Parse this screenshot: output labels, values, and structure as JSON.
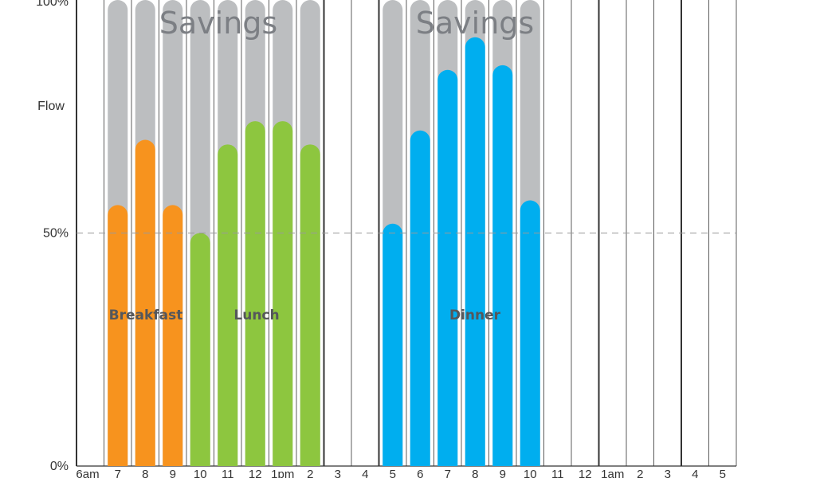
{
  "chart_data": {
    "type": "bar",
    "ylabel": "Flow",
    "ylim": [
      0,
      100
    ],
    "y_ticks": [
      "0%",
      "50%",
      "100%"
    ],
    "reference_line": {
      "value": 50,
      "style": "dashed"
    },
    "categories": [
      "6am",
      "7",
      "8",
      "9",
      "10",
      "11",
      "12",
      "1pm",
      "2",
      "3",
      "4",
      "5",
      "6",
      "7",
      "8",
      "9",
      "10",
      "11",
      "12",
      "1am",
      "2",
      "3",
      "4",
      "5"
    ],
    "full_capacity": [
      null,
      100,
      100,
      100,
      100,
      100,
      100,
      100,
      100,
      null,
      null,
      100,
      100,
      100,
      100,
      100,
      100,
      null,
      null,
      null,
      null,
      null,
      null,
      null
    ],
    "series": [
      {
        "name": "Breakfast",
        "color": "#f7931e",
        "values": [
          null,
          56,
          70,
          56,
          null,
          null,
          null,
          null,
          null,
          null,
          null,
          null,
          null,
          null,
          null,
          null,
          null,
          null,
          null,
          null,
          null,
          null,
          null,
          null
        ]
      },
      {
        "name": "Lunch",
        "color": "#8dc63f",
        "values": [
          null,
          null,
          null,
          null,
          50,
          69,
          74,
          74,
          69,
          null,
          null,
          null,
          null,
          null,
          null,
          null,
          null,
          null,
          null,
          null,
          null,
          null,
          null,
          null
        ]
      },
      {
        "name": "Dinner",
        "color": "#00aeef",
        "values": [
          null,
          null,
          null,
          null,
          null,
          null,
          null,
          null,
          null,
          null,
          null,
          52,
          72,
          85,
          92,
          86,
          57,
          null,
          null,
          null,
          null,
          null,
          null,
          null
        ]
      }
    ],
    "annotations": [
      {
        "text": "Savings",
        "near": "Breakfast and Lunch"
      },
      {
        "text": "Savings",
        "near": "Dinner"
      }
    ],
    "colors": {
      "capacity": "#bcbec0",
      "grid": "#333333",
      "reference": "#999999"
    }
  }
}
